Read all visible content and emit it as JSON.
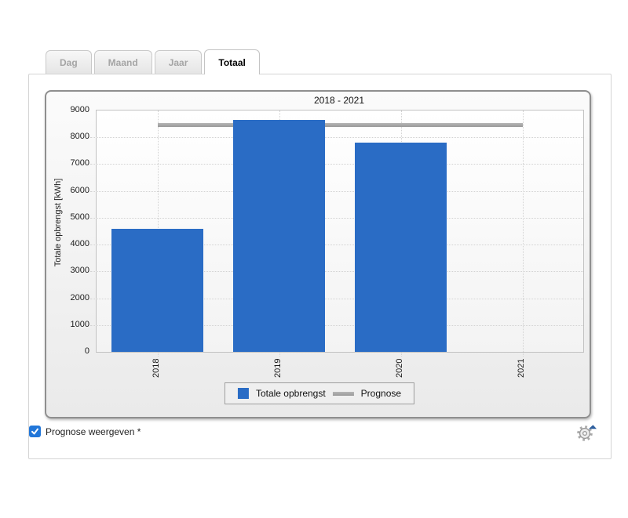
{
  "tabs": [
    {
      "label": "Dag",
      "active": false
    },
    {
      "label": "Maand",
      "active": false
    },
    {
      "label": "Jaar",
      "active": false
    },
    {
      "label": "Totaal",
      "active": true
    }
  ],
  "chart_data": {
    "type": "bar",
    "title": "2018 - 2021",
    "categories": [
      "2018",
      "2019",
      "2020",
      "2021"
    ],
    "series": [
      {
        "name": "Totale opbrengst",
        "type": "bar",
        "color": "#2a6cc5",
        "values": [
          4600,
          8650,
          7800,
          0
        ]
      },
      {
        "name": "Prognose",
        "type": "line",
        "color": "#a3a3a3",
        "values": [
          8450,
          8450,
          8450,
          8450
        ]
      }
    ],
    "xlabel": "",
    "ylabel": "Totale opbrengst [kWh]",
    "ylim": [
      0,
      9000
    ],
    "ytick_step": 1000,
    "grid": true,
    "legend_position": "bottom-center",
    "x_tick_rotation": -90
  },
  "controls": {
    "prognose_toggle_label": "Prognose weergeven *",
    "prognose_toggle_checked": true
  },
  "icons": {
    "settings": "gear",
    "settings_arrow": "triangle-up",
    "checkbox_check": "check"
  },
  "colors": {
    "bar_blue": "#2a6cc5",
    "prognose_gray": "#a3a3a3",
    "checkbox_blue": "#2176d9",
    "gear_gray": "#a9a9a9",
    "gear_arrow_blue": "#2e5f9e"
  }
}
